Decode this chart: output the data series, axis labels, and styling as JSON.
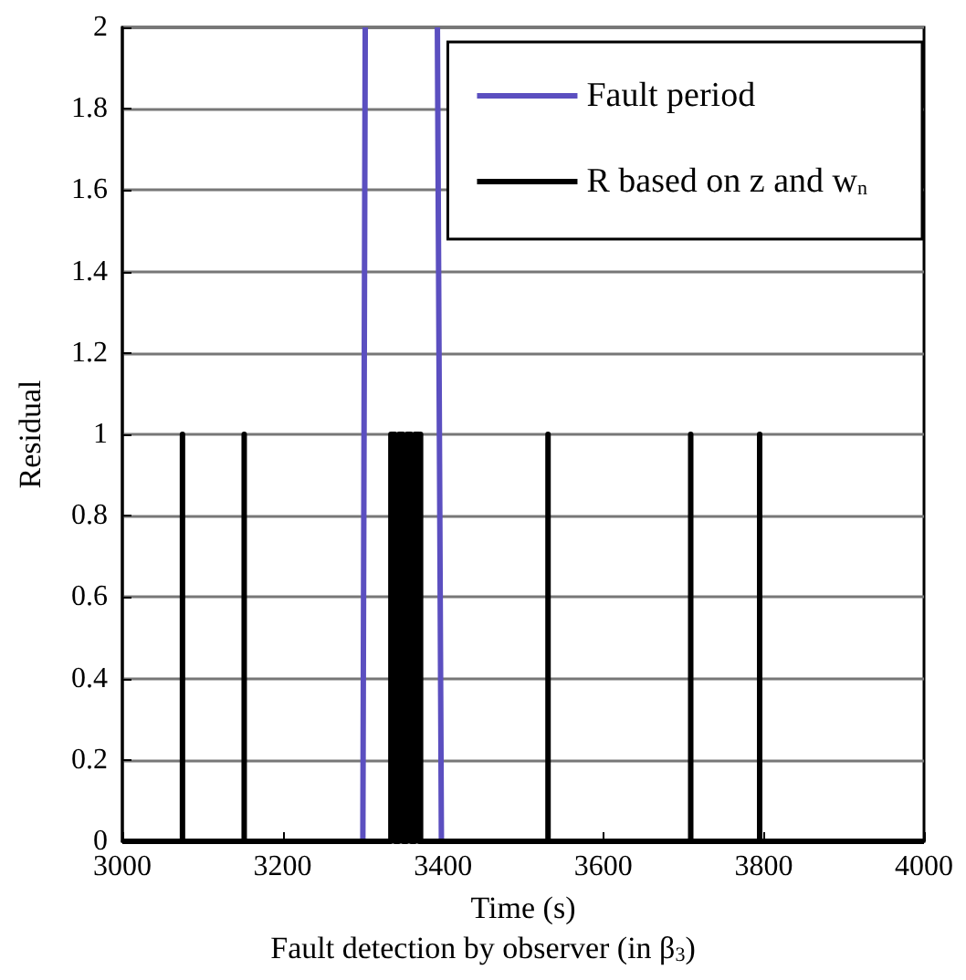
{
  "chart_data": {
    "type": "line",
    "xlabel": "Time (s)",
    "ylabel": "Residual",
    "annotations": [
      "Fault detection by observer (in β$_{3}$)"
    ],
    "xlim": [
      3000,
      4000
    ],
    "xticks": [
      3000,
      3200,
      3400,
      3600,
      3800,
      4000
    ],
    "ylim": [
      0,
      2
    ],
    "yticks": [
      0,
      0.2,
      0.4,
      0.6,
      0.8,
      1,
      1.2,
      1.4,
      1.6,
      1.8,
      2
    ],
    "grid": "y",
    "legend": "top right",
    "marker": "none",
    "line_style": "solid",
    "series": [
      {
        "name": "Fault period",
        "color": "#5b4fc0",
        "x": [
          3300,
          3303,
          3350,
          3393,
          3398
        ],
        "values": [
          0,
          2,
          null,
          2,
          0
        ]
      },
      {
        "name": "R based on z and w$_{n}$",
        "color": "#000000",
        "x": [
          3000,
          3075,
          3075,
          3075,
          3152,
          3152,
          3152,
          3335,
          3335,
          3340,
          3340,
          3345,
          3345,
          3350,
          3350,
          3355,
          3355,
          3360,
          3360,
          3365,
          3365,
          3370,
          3370,
          3372,
          3372,
          3372,
          3531,
          3531,
          3531,
          3709,
          3709,
          3709,
          3795,
          3795,
          3795,
          4000
        ],
        "values": [
          0,
          0,
          1,
          0,
          0,
          1,
          0,
          0,
          1,
          1,
          0,
          0,
          1,
          1,
          0,
          0,
          1,
          1,
          0,
          0,
          1,
          1,
          0,
          0,
          1,
          0,
          0,
          1,
          0,
          0,
          1,
          0,
          0,
          1,
          0,
          0
        ]
      }
    ]
  }
}
